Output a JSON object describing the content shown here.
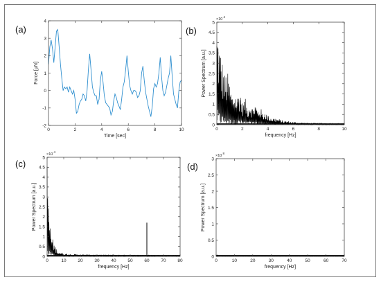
{
  "chart_data": [
    {
      "panel": "(a)",
      "type": "line",
      "xlabel": "Time [sec]",
      "ylabel": "Force [μN]",
      "xlim": [
        0,
        10
      ],
      "ylim": [
        -2,
        4
      ],
      "xticks": [
        0,
        2,
        4,
        6,
        8,
        10
      ],
      "yticks": [
        -2,
        -1,
        0,
        1,
        2,
        3,
        4
      ],
      "grid": false,
      "color": "#2f8fcf",
      "series": [
        {
          "x": [
            0.0,
            0.1,
            0.2,
            0.3,
            0.4,
            0.5,
            0.6,
            0.7,
            0.8,
            0.9,
            1.0,
            1.1,
            1.2,
            1.3,
            1.4,
            1.5,
            1.6,
            1.7,
            1.8,
            1.9,
            2.0,
            2.1,
            2.2,
            2.3,
            2.4,
            2.5,
            2.6,
            2.7,
            2.8,
            2.9,
            3.0,
            3.1,
            3.2,
            3.3,
            3.4,
            3.5,
            3.6,
            3.7,
            3.8,
            3.9,
            4.0,
            4.1,
            4.2,
            4.3,
            4.4,
            4.5,
            4.6,
            4.7,
            4.8,
            4.9,
            5.0,
            5.1,
            5.2,
            5.3,
            5.4,
            5.5,
            5.6,
            5.7,
            5.8,
            5.9,
            6.0,
            6.1,
            6.2,
            6.3,
            6.4,
            6.5,
            6.6,
            6.7,
            6.8,
            6.9,
            7.0,
            7.1,
            7.2,
            7.3,
            7.4,
            7.5,
            7.6,
            7.7,
            7.8,
            7.9,
            8.0,
            8.1,
            8.2,
            8.3,
            8.4,
            8.5,
            8.6,
            8.7,
            8.8,
            8.9,
            9.0,
            9.1,
            9.2,
            9.3,
            9.4,
            9.5,
            9.6,
            9.7,
            9.8,
            9.9,
            10.0
          ],
          "y": [
            1.5,
            2.5,
            2.9,
            2.4,
            1.6,
            2.5,
            3.4,
            3.5,
            2.5,
            1.5,
            0.7,
            0.0,
            0.2,
            0.1,
            0.2,
            -0.1,
            0.2,
            0.0,
            -0.2,
            0.0,
            -0.5,
            -1.3,
            -1.2,
            -0.8,
            -0.6,
            -0.5,
            -0.2,
            -0.3,
            -0.6,
            0.0,
            1.2,
            2.1,
            1.2,
            0.2,
            -0.1,
            -0.3,
            -0.3,
            -0.8,
            -0.5,
            0.6,
            1.1,
            0.5,
            -0.3,
            -0.7,
            -0.8,
            -0.9,
            -1.0,
            -1.4,
            -1.2,
            -0.6,
            -0.2,
            -0.4,
            -0.7,
            -0.9,
            -1.1,
            -0.5,
            0.2,
            0.5,
            1.2,
            2.0,
            1.1,
            0.3,
            0.0,
            -0.2,
            0.0,
            0.0,
            -0.1,
            -0.4,
            -0.3,
            0.0,
            1.0,
            1.4,
            0.6,
            -0.1,
            -0.5,
            -0.9,
            -1.2,
            -1.5,
            -0.9,
            0.1,
            0.4,
            0.2,
            0.4,
            1.0,
            1.9,
            0.8,
            0.0,
            -0.3,
            -0.1,
            0.3,
            0.7,
            1.0,
            2.0,
            0.8,
            -0.2,
            -0.5,
            -0.8,
            -1.0,
            0.0,
            0.5,
            0.6
          ]
        }
      ]
    },
    {
      "panel": "(b)",
      "type": "line",
      "xlabel": "frequency [Hz]",
      "ylabel": "Power Spectrum [a.u.]",
      "exponent_label": "×10",
      "exponent_power": "4",
      "xlim": [
        0,
        10
      ],
      "ylim": [
        0,
        5
      ],
      "xticks": [
        0,
        2,
        4,
        6,
        8,
        10
      ],
      "yticks": [
        0,
        0.5,
        1,
        1.5,
        2,
        2.5,
        3,
        3.5,
        4,
        4.5,
        5
      ],
      "color": "#000000",
      "envelope": {
        "x": [
          0.05,
          0.2,
          0.4,
          0.6,
          0.8,
          1.0,
          1.2,
          1.4,
          1.6,
          1.8,
          2.0,
          2.2,
          2.4,
          2.6,
          2.8,
          3.0,
          3.2,
          3.4,
          3.6,
          3.8,
          4.0,
          4.4,
          4.8,
          5.2,
          5.6,
          6.0,
          7.0,
          8.0,
          9.0,
          10.0
        ],
        "y": [
          4.95,
          4.1,
          3.3,
          2.5,
          2.7,
          2.1,
          1.5,
          1.7,
          1.4,
          1.9,
          1.1,
          1.35,
          0.9,
          1.2,
          0.85,
          1.1,
          0.75,
          0.9,
          0.55,
          0.7,
          0.45,
          0.35,
          0.3,
          0.2,
          0.18,
          0.14,
          0.1,
          0.08,
          0.07,
          0.06
        ]
      }
    },
    {
      "panel": "(c)",
      "type": "line",
      "xlabel": "frequency [Hz]",
      "ylabel": "Power Spectrum [a.u.]",
      "exponent_label": "×10",
      "exponent_power": "4",
      "xlim": [
        0,
        80
      ],
      "ylim": [
        0,
        5
      ],
      "xticks": [
        0,
        10,
        20,
        30,
        40,
        50,
        60,
        70,
        80
      ],
      "yticks": [
        0,
        0.5,
        1,
        1.5,
        2,
        2.5,
        3,
        3.5,
        4,
        4.5,
        5
      ],
      "color": "#000000",
      "envelope": {
        "x": [
          0.2,
          0.6,
          1.0,
          1.5,
          2.0,
          2.5,
          3.0,
          4.0,
          5.0,
          6.0,
          8.0,
          10.0,
          15.0,
          20.0,
          30.0,
          40.0,
          50.0,
          60.0,
          70.0,
          80.0
        ],
        "y": [
          4.95,
          3.8,
          2.9,
          2.0,
          1.5,
          1.2,
          1.0,
          0.7,
          0.5,
          0.35,
          0.22,
          0.16,
          0.12,
          0.1,
          0.08,
          0.07,
          0.06,
          0.06,
          0.05,
          0.05
        ]
      },
      "spike": {
        "x": 60,
        "y": 1.7
      }
    },
    {
      "panel": "(d)",
      "type": "line",
      "xlabel": "frequency [Hz]",
      "ylabel": "Power Spectrum [a.u.]",
      "exponent_label": "×10",
      "exponent_power": "8",
      "xlim": [
        0,
        70
      ],
      "ylim": [
        0,
        3
      ],
      "xticks": [
        0,
        10,
        20,
        30,
        40,
        50,
        60,
        70
      ],
      "yticks": [
        0,
        0.5,
        1,
        1.5,
        2,
        2.5,
        3
      ],
      "color": "#000000",
      "envelope": {
        "x": [
          0.0,
          0.3,
          0.6,
          1.0,
          2.0,
          4.0,
          10.0,
          30.0,
          70.0
        ],
        "y": [
          0.0,
          0.03,
          0.07,
          0.03,
          0.02,
          0.015,
          0.012,
          0.01,
          0.01
        ]
      }
    }
  ]
}
